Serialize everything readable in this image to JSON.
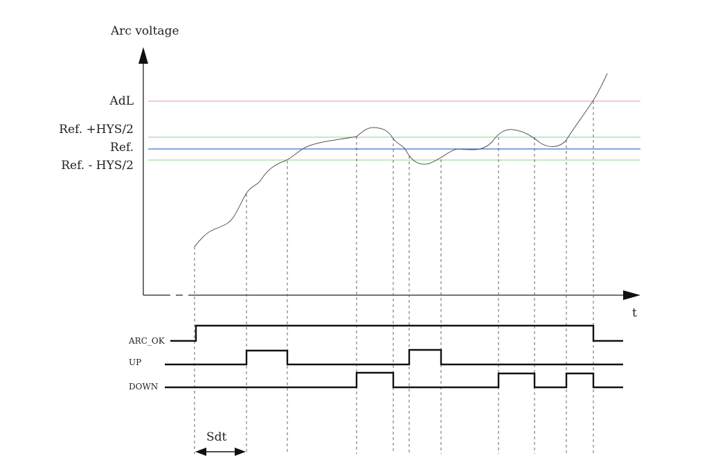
{
  "diagram": {
    "y_axis_label": "Arc voltage",
    "x_axis_label": "t",
    "thresholds": [
      {
        "label": "AdL",
        "color": "#f4a6a6"
      },
      {
        "label": "Ref. +HYS/2",
        "color": "#9fdc9f"
      },
      {
        "label": "Ref.",
        "color": "#3f6fd0"
      },
      {
        "label": "Ref. - HYS/2",
        "color": "#9fdc9f"
      }
    ],
    "signals": [
      "ARC_OK",
      "UP",
      "DOWN"
    ],
    "sdt_label": "Sdt"
  }
}
